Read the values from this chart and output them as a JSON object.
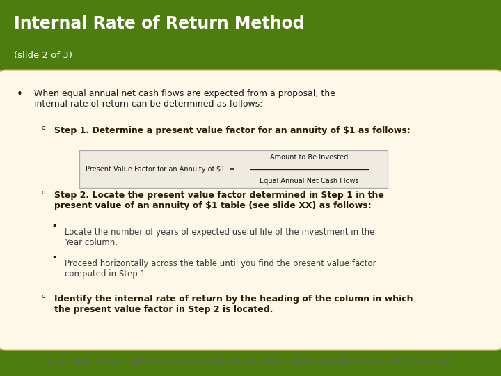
{
  "title": "Internal Rate of Return Method",
  "subtitle": "(slide 2 of 3)",
  "header_bg": "#4d7c0f",
  "header_title_color": "#ffffff",
  "header_subtitle_color": "#ffffff",
  "body_bg": "#fdf8e8",
  "body_border_color": "#c8b464",
  "footer_bg": "#ffffff",
  "footer_color": "#666666",
  "text_color": "#1a1a1a",
  "bold_color": "#2d1a00",
  "sub_text_color": "#3a3a3a",
  "formula_bg": "#f0ebe0",
  "formula_border": "#aaaaaa",
  "bullet_line1": "When equal annual net cash flows are expected from a proposal, the",
  "bullet_line2": "internal rate of return can be determined as follows:",
  "step1_text": "Step 1. Determine a present value factor for an annuity of $1 as follows:",
  "formula_lhs": "Present Value Factor for an Annuity of $1  =",
  "formula_numerator": "Amount to Be Invested",
  "formula_denominator": "Equal Annual Net Cash Flows",
  "step2_line1": "Step 2. Locate the present value factor determined in Step 1 in the",
  "step2_line2": "present value of an annuity of $1 table (see slide XX) as follows:",
  "sub_bullet1_line1": "Locate the number of years of expected useful life of the investment in the",
  "sub_bullet1_line2": "Year column.",
  "sub_bullet2_line1": "Proceed horizontally across the table until you find the present value factor",
  "sub_bullet2_line2": "computed in Step 1.",
  "step3_line1": "Identify the internal rate of return by the heading of the column in which",
  "step3_line2": "the present value factor in Step 2 is located.",
  "footer": "©2016 Cengage Learning. All Rights Reserved. May not be scanned, copied or duplicated, or posted to a publicly accessible website, in whole or in part."
}
